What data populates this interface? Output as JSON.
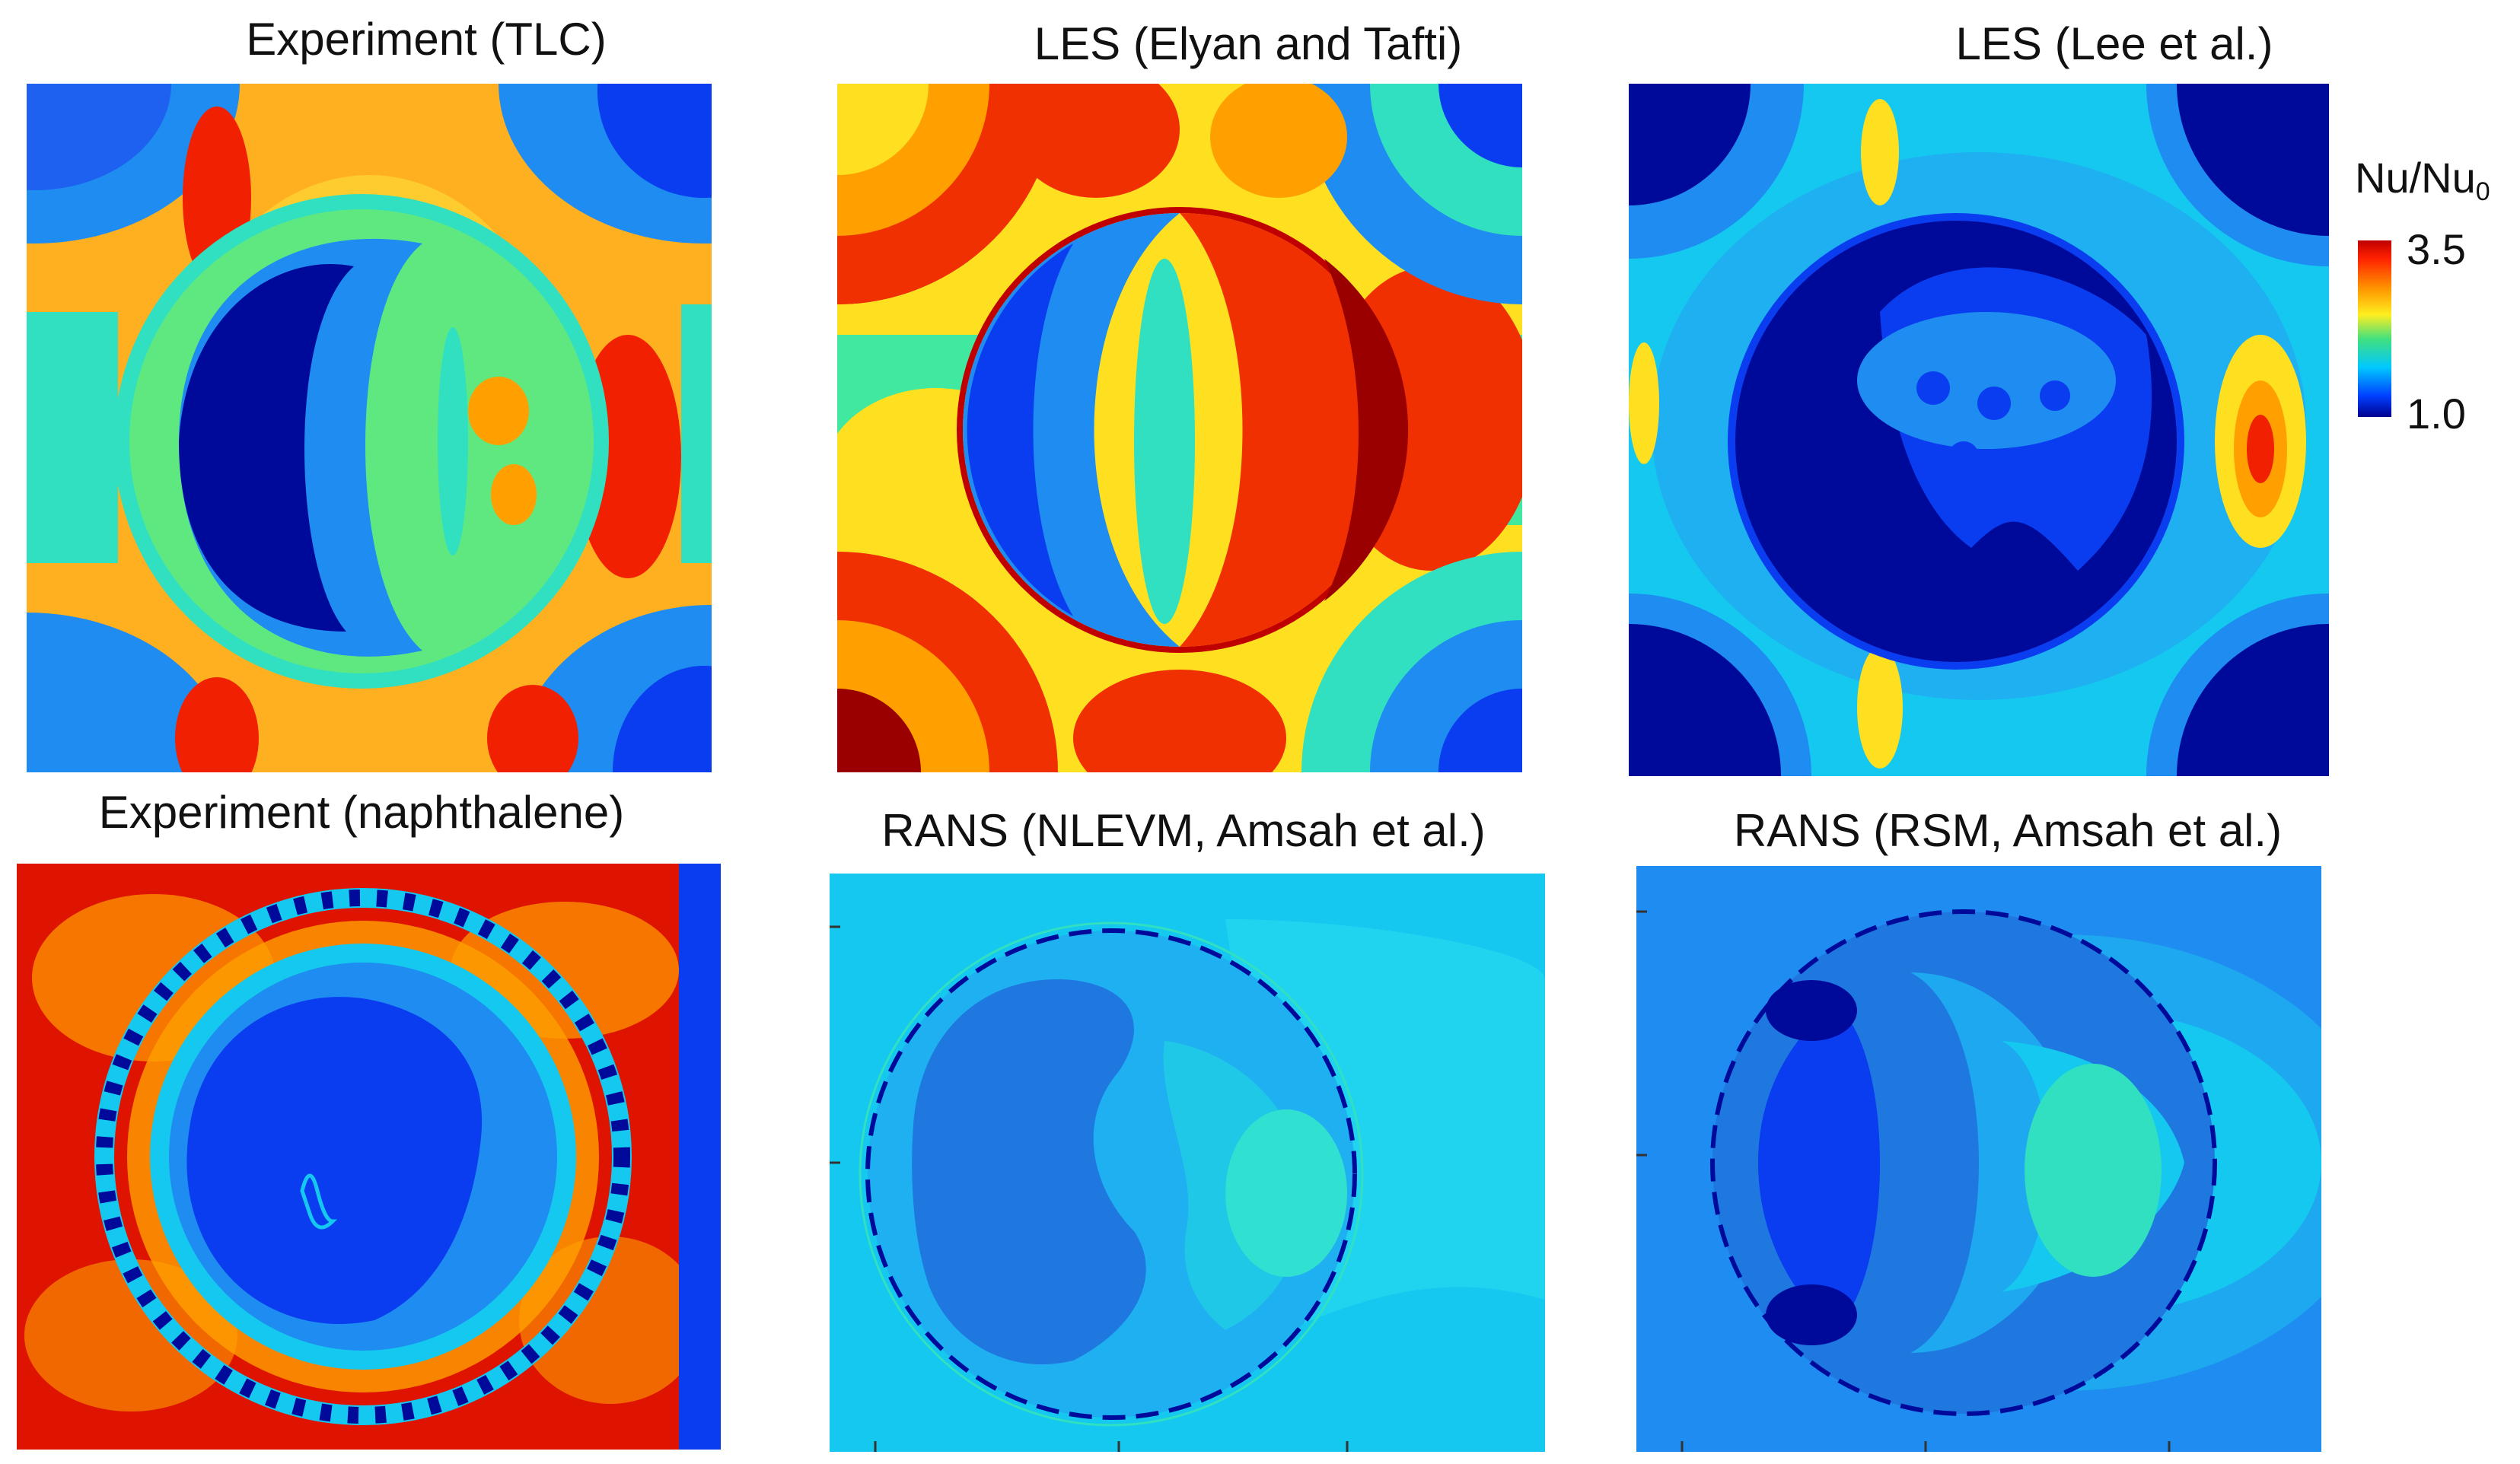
{
  "panels": [
    {
      "id": "tlc",
      "title": "Experiment (TLC)"
    },
    {
      "id": "les-et",
      "title": "LES (Elyan and Tafti)"
    },
    {
      "id": "les-lee",
      "title": "LES (Lee et al.)"
    },
    {
      "id": "naph",
      "title": "Experiment (naphthalene)"
    },
    {
      "id": "rans-nlevm",
      "title": "RANS (NLEVM, Amsah et al.)"
    },
    {
      "id": "rans-rsm",
      "title": "RANS (RSM, Amsah et al.)"
    }
  ],
  "colorbar": {
    "label_main": "Nu/Nu",
    "label_sub": "0",
    "max_label": "3.5",
    "min_label": "1.0",
    "min": 1.0,
    "max": 3.5,
    "colormap": "jet"
  },
  "colors": {
    "darkblue": "#000a9a",
    "blue": "#0a3cf0",
    "lightblue": "#1e8cf0",
    "cyan": "#14c8f0",
    "aqua": "#30e0c0",
    "green": "#60e880",
    "yellow": "#ffe020",
    "orange": "#ffa000",
    "red": "#f02000",
    "darkred": "#9a0000"
  }
}
